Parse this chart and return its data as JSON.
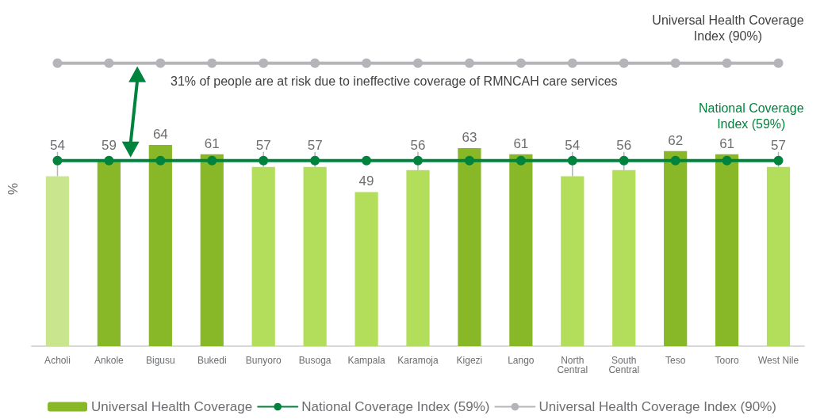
{
  "chart_data": {
    "type": "bar",
    "ylabel": "%",
    "categories": [
      "Acholi",
      "Ankole",
      "Bigusu",
      "Bukedi",
      "Bunyoro",
      "Busoga",
      "Kampala",
      "Karamoja",
      "Kigezi",
      "Lango",
      "North\nCentral",
      "South\nCentral",
      "Teso",
      "Tooro",
      "West Nile"
    ],
    "series": [
      {
        "name": "Universal Health Coverage",
        "color": "#88b827",
        "values": [
          54,
          59,
          64,
          61,
          57,
          57,
          49,
          56,
          63,
          61,
          54,
          56,
          62,
          61,
          57
        ],
        "value_labels": [
          "54",
          "59",
          "64",
          "61",
          "57",
          "57",
          "49",
          "56",
          "63",
          "61",
          "54",
          "56",
          "62",
          "61",
          "57"
        ],
        "colors": [
          "#c9e68f",
          "#88b827",
          "#88b827",
          "#88b827",
          "#b3de5c",
          "#b3de5c",
          "#b3de5c",
          "#b3de5c",
          "#88b827",
          "#88b827",
          "#b3de5c",
          "#b3de5c",
          "#88b827",
          "#88b827",
          "#b3de5c"
        ]
      },
      {
        "name": "National Coverage Index (59%)",
        "type": "line",
        "color": "#00843d",
        "values": [
          59,
          59,
          59,
          59,
          59,
          59,
          59,
          59,
          59,
          59,
          59,
          59,
          59,
          59,
          59
        ]
      },
      {
        "name": "Universal Health Coverage Index (90%)",
        "type": "line",
        "color": "#b3b5b8",
        "values": [
          90,
          90,
          90,
          90,
          90,
          90,
          90,
          90,
          90,
          90,
          90,
          90,
          90,
          90,
          90
        ]
      }
    ],
    "annotations": [
      "31% of people are at risk due to ineffective coverage of RMNCAH care services",
      {
        "text": "Universal Health Coverage\nIndex (90%)",
        "x": "West Nile",
        "y": 90
      },
      {
        "text": "National Coverage\nIndex (59%)",
        "x": "West Nile",
        "y": 59
      }
    ],
    "legend": "bottom",
    "marker": "circle",
    "line_style": "solid",
    "grid": false,
    "tick_labels": "x"
  }
}
